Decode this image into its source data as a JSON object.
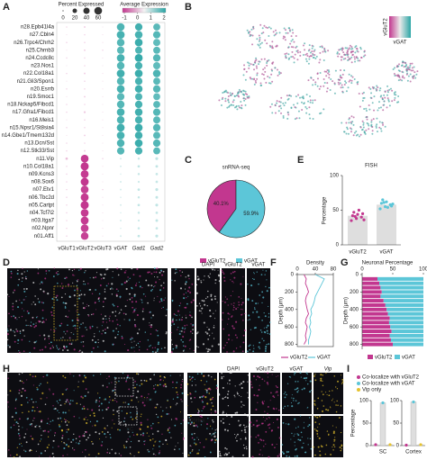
{
  "panels": {
    "letters": [
      "A",
      "B",
      "C",
      "D",
      "E",
      "F",
      "G",
      "H",
      "I"
    ]
  },
  "dotplot": {
    "percent_title": "Percent Expressed",
    "percent_ticks": [
      0,
      20,
      40,
      60
    ],
    "expression_title": "Average Expression",
    "expression_ticks": [
      -1,
      0,
      1,
      2
    ],
    "expression_colors": [
      "#c2378f",
      "#f4f4f4",
      "#2aa5a5"
    ],
    "rows": [
      "n28.Epb41l4a",
      "n27.Cbln4",
      "n26.Trpc4/Chrh2",
      "n25.Chrnb3",
      "n24.Ccdc8c",
      "n23.Nos1",
      "n22.Col18a1",
      "n21.Gli3/Spon1",
      "n20.Esrrb",
      "n19.Smoc1",
      "n18.Nckap5/Fibcd1",
      "n17.Gfra1/Fibcd1",
      "n16.Meis1",
      "n15.Npsr1/St8sia4",
      "n14.Gbe1/Tmem132d",
      "n13.Dcn/Sst",
      "n12.Stk33/Sst",
      "n11.Vip",
      "n10.Col18a1",
      "n09.Kcns3",
      "n08.Sox6",
      "n07.Etv1",
      "n06.Tbc2d",
      "n05.Cartpt",
      "n04.Tcf7l2",
      "n03.Itga7",
      "n02.Npnr",
      "n01.Aff1"
    ],
    "columns": [
      "vGluT1",
      "vGluT2",
      "vGluT3",
      "vGAT",
      "Gad1",
      "Gad2"
    ],
    "column_colors": [
      "#c2378f",
      "#c2378f",
      "#c2378f",
      "#2aa5a5",
      "#2aa5a5",
      "#2aa5a5"
    ],
    "percent": [
      [
        2,
        3,
        1,
        60,
        55,
        50
      ],
      [
        1,
        2,
        1,
        62,
        58,
        55
      ],
      [
        2,
        2,
        1,
        58,
        60,
        52
      ],
      [
        1,
        3,
        2,
        55,
        52,
        50
      ],
      [
        2,
        2,
        1,
        60,
        62,
        55
      ],
      [
        1,
        2,
        1,
        57,
        55,
        52
      ],
      [
        2,
        3,
        1,
        62,
        60,
        58
      ],
      [
        1,
        2,
        1,
        58,
        55,
        50
      ],
      [
        2,
        2,
        1,
        60,
        58,
        55
      ],
      [
        1,
        3,
        1,
        55,
        52,
        48
      ],
      [
        2,
        2,
        1,
        57,
        55,
        50
      ],
      [
        2,
        4,
        1,
        60,
        58,
        55
      ],
      [
        1,
        2,
        1,
        58,
        55,
        52
      ],
      [
        2,
        2,
        1,
        62,
        60,
        55
      ],
      [
        1,
        3,
        1,
        60,
        58,
        52
      ],
      [
        2,
        2,
        1,
        58,
        60,
        55
      ],
      [
        2,
        3,
        1,
        55,
        55,
        50
      ],
      [
        6,
        60,
        2,
        3,
        5,
        8
      ],
      [
        2,
        65,
        1,
        3,
        6,
        7
      ],
      [
        2,
        62,
        1,
        2,
        5,
        6
      ],
      [
        2,
        64,
        1,
        3,
        4,
        6
      ],
      [
        2,
        60,
        2,
        3,
        6,
        8
      ],
      [
        2,
        63,
        1,
        2,
        5,
        7
      ],
      [
        2,
        66,
        1,
        3,
        6,
        8
      ],
      [
        2,
        61,
        1,
        2,
        5,
        6
      ],
      [
        2,
        62,
        1,
        3,
        4,
        7
      ],
      [
        2,
        60,
        1,
        2,
        5,
        6
      ],
      [
        2,
        58,
        1,
        3,
        6,
        8
      ]
    ],
    "expression": [
      [
        -0.8,
        -0.7,
        -0.9,
        1.4,
        1.6,
        1.2
      ],
      [
        -0.9,
        -0.8,
        -0.9,
        1.5,
        1.5,
        1.3
      ],
      [
        -0.8,
        -0.8,
        -0.9,
        1.3,
        1.7,
        1.1
      ],
      [
        -0.9,
        -0.7,
        -0.8,
        1.2,
        1.4,
        1.2
      ],
      [
        -0.8,
        -0.8,
        -0.9,
        1.5,
        1.8,
        1.3
      ],
      [
        -0.9,
        -0.8,
        -0.9,
        1.3,
        1.5,
        1.1
      ],
      [
        -0.8,
        -0.7,
        -0.9,
        1.6,
        1.7,
        1.4
      ],
      [
        -0.9,
        -0.8,
        -0.9,
        1.3,
        1.5,
        1.2
      ],
      [
        -0.8,
        -0.8,
        -0.9,
        1.5,
        1.6,
        1.3
      ],
      [
        -0.9,
        -0.7,
        -0.9,
        1.2,
        1.4,
        1.1
      ],
      [
        -0.8,
        -0.8,
        -0.9,
        1.3,
        1.5,
        1.2
      ],
      [
        -0.8,
        -0.6,
        -0.9,
        1.5,
        1.6,
        1.3
      ],
      [
        -0.9,
        -0.8,
        -0.9,
        1.4,
        1.5,
        1.2
      ],
      [
        -0.8,
        -0.8,
        -0.9,
        1.6,
        1.7,
        1.3
      ],
      [
        -0.9,
        -0.7,
        -0.9,
        1.5,
        1.6,
        1.2
      ],
      [
        -0.8,
        -0.8,
        -0.9,
        1.4,
        1.7,
        1.3
      ],
      [
        -0.8,
        -0.7,
        -0.9,
        1.3,
        1.5,
        1.2
      ],
      [
        -0.4,
        1.9,
        -0.8,
        -0.8,
        -0.6,
        -0.5
      ],
      [
        -0.8,
        2.0,
        -0.9,
        -0.8,
        -0.5,
        -0.5
      ],
      [
        -0.8,
        1.9,
        -0.9,
        -0.9,
        -0.6,
        -0.6
      ],
      [
        -0.8,
        2.0,
        -0.9,
        -0.8,
        -0.7,
        -0.6
      ],
      [
        -0.8,
        1.8,
        -0.8,
        -0.8,
        -0.5,
        -0.5
      ],
      [
        -0.8,
        1.9,
        -0.9,
        -0.9,
        -0.6,
        -0.5
      ],
      [
        -0.8,
        2.0,
        -0.9,
        -0.8,
        -0.5,
        -0.5
      ],
      [
        -0.8,
        1.9,
        -0.9,
        -0.9,
        -0.6,
        -0.6
      ],
      [
        -0.8,
        1.9,
        -0.9,
        -0.8,
        -0.7,
        -0.5
      ],
      [
        -0.8,
        1.8,
        -0.9,
        -0.9,
        -0.6,
        -0.6
      ],
      [
        -0.8,
        1.8,
        -0.9,
        -0.8,
        -0.5,
        -0.5
      ]
    ]
  },
  "umap": {
    "legend_y": "vGluT2",
    "legend_x": "vGAT"
  },
  "pie": {
    "title": "snRNA-seq",
    "series": [
      {
        "name": "vGluT2",
        "color": "#c2378f",
        "value": 40.1,
        "value_label": "40.1%"
      },
      {
        "name": "vGAT",
        "color": "#5cc6d8",
        "value": 59.9,
        "value_label": "59.9%"
      }
    ]
  },
  "fish": {
    "title": "FISH",
    "ylabel": "Percentage",
    "ylim": [
      0,
      100
    ],
    "yticks": [
      0,
      50,
      100
    ],
    "bar_color": "#dedede",
    "series": [
      {
        "name": "vGluT2",
        "color": "#c2378f",
        "value": 42,
        "points": [
          35,
          38,
          40,
          42,
          44,
          45,
          47,
          50,
          36,
          41
        ]
      },
      {
        "name": "vGAT",
        "color": "#5cc6d8",
        "value": 58,
        "points": [
          52,
          55,
          58,
          60,
          62,
          56,
          65,
          54,
          59,
          61
        ]
      }
    ]
  },
  "density": {
    "title": "Density",
    "ylabel": "Depth (μm)",
    "depths": [
      0,
      50,
      100,
      150,
      200,
      250,
      300,
      350,
      400,
      450,
      500,
      550,
      600,
      650,
      700,
      750,
      800
    ],
    "ylim": [
      0,
      825
    ],
    "yticks": [
      0,
      200,
      400,
      600,
      800
    ],
    "xlim": [
      0,
      80
    ],
    "xticks": [
      0,
      40,
      80
    ],
    "series": [
      {
        "name": "vGluT2",
        "color": "#c2378f",
        "values": [
          15,
          20,
          18,
          22,
          25,
          20,
          18,
          20,
          22,
          25,
          20,
          18,
          22,
          20,
          18,
          20,
          15
        ]
      },
      {
        "name": "vGAT",
        "color": "#5cc6d8",
        "values": [
          40,
          60,
          55,
          50,
          45,
          40,
          38,
          35,
          30,
          32,
          28,
          30,
          27,
          30,
          28,
          25,
          25
        ]
      }
    ]
  },
  "neuronal": {
    "title": "Neuronal Percentage",
    "ylabel": "Depth (μm)",
    "depths": [
      50,
      100,
      150,
      200,
      250,
      300,
      350,
      400,
      450,
      500,
      550,
      600,
      650,
      700,
      750,
      800
    ],
    "ylim": [
      0,
      825
    ],
    "yticks": [
      0,
      200,
      400,
      600,
      800
    ],
    "xlim": [
      0,
      100
    ],
    "xticks": [
      0,
      50,
      100
    ],
    "series": [
      {
        "name": "vGluT2",
        "color": "#c2378f",
        "values": [
          25,
          28,
          30,
          32,
          30,
          35,
          38,
          40,
          42,
          45,
          44,
          46,
          48,
          45,
          47,
          50
        ]
      },
      {
        "name": "vGAT",
        "color": "#5cc6d8",
        "values": [
          75,
          72,
          70,
          68,
          70,
          65,
          62,
          60,
          58,
          55,
          56,
          54,
          52,
          55,
          53,
          50
        ]
      }
    ]
  },
  "imaging_d": {
    "channels": [
      "DAPI",
      "vGluT2",
      "vGAT"
    ],
    "channel_colors": [
      "#e8e8e8",
      "#c2378f",
      "#5cc6d8"
    ]
  },
  "imaging_h": {
    "channels": [
      "DAPI",
      "vGluT2",
      "vGAT",
      "Vip"
    ],
    "channel_colors": [
      "#e8e8e8",
      "#c2378f",
      "#5cc6d8",
      "#e5c22e"
    ],
    "regions": [
      "Cortex",
      "SC"
    ]
  },
  "coloc": {
    "ylabel": "Percentage",
    "ylim": [
      0,
      100
    ],
    "yticks": [
      0,
      50,
      100
    ],
    "legend": [
      "Co-localize with vGluT2",
      "Co-localize with vGAT",
      "Vip only"
    ],
    "colors": [
      "#c2378f",
      "#5cc6d8",
      "#e5c22e"
    ],
    "groups": [
      {
        "name": "SC",
        "values": [
          2,
          95,
          2
        ]
      },
      {
        "name": "Cortex",
        "values": [
          1,
          97,
          2
        ]
      }
    ]
  }
}
